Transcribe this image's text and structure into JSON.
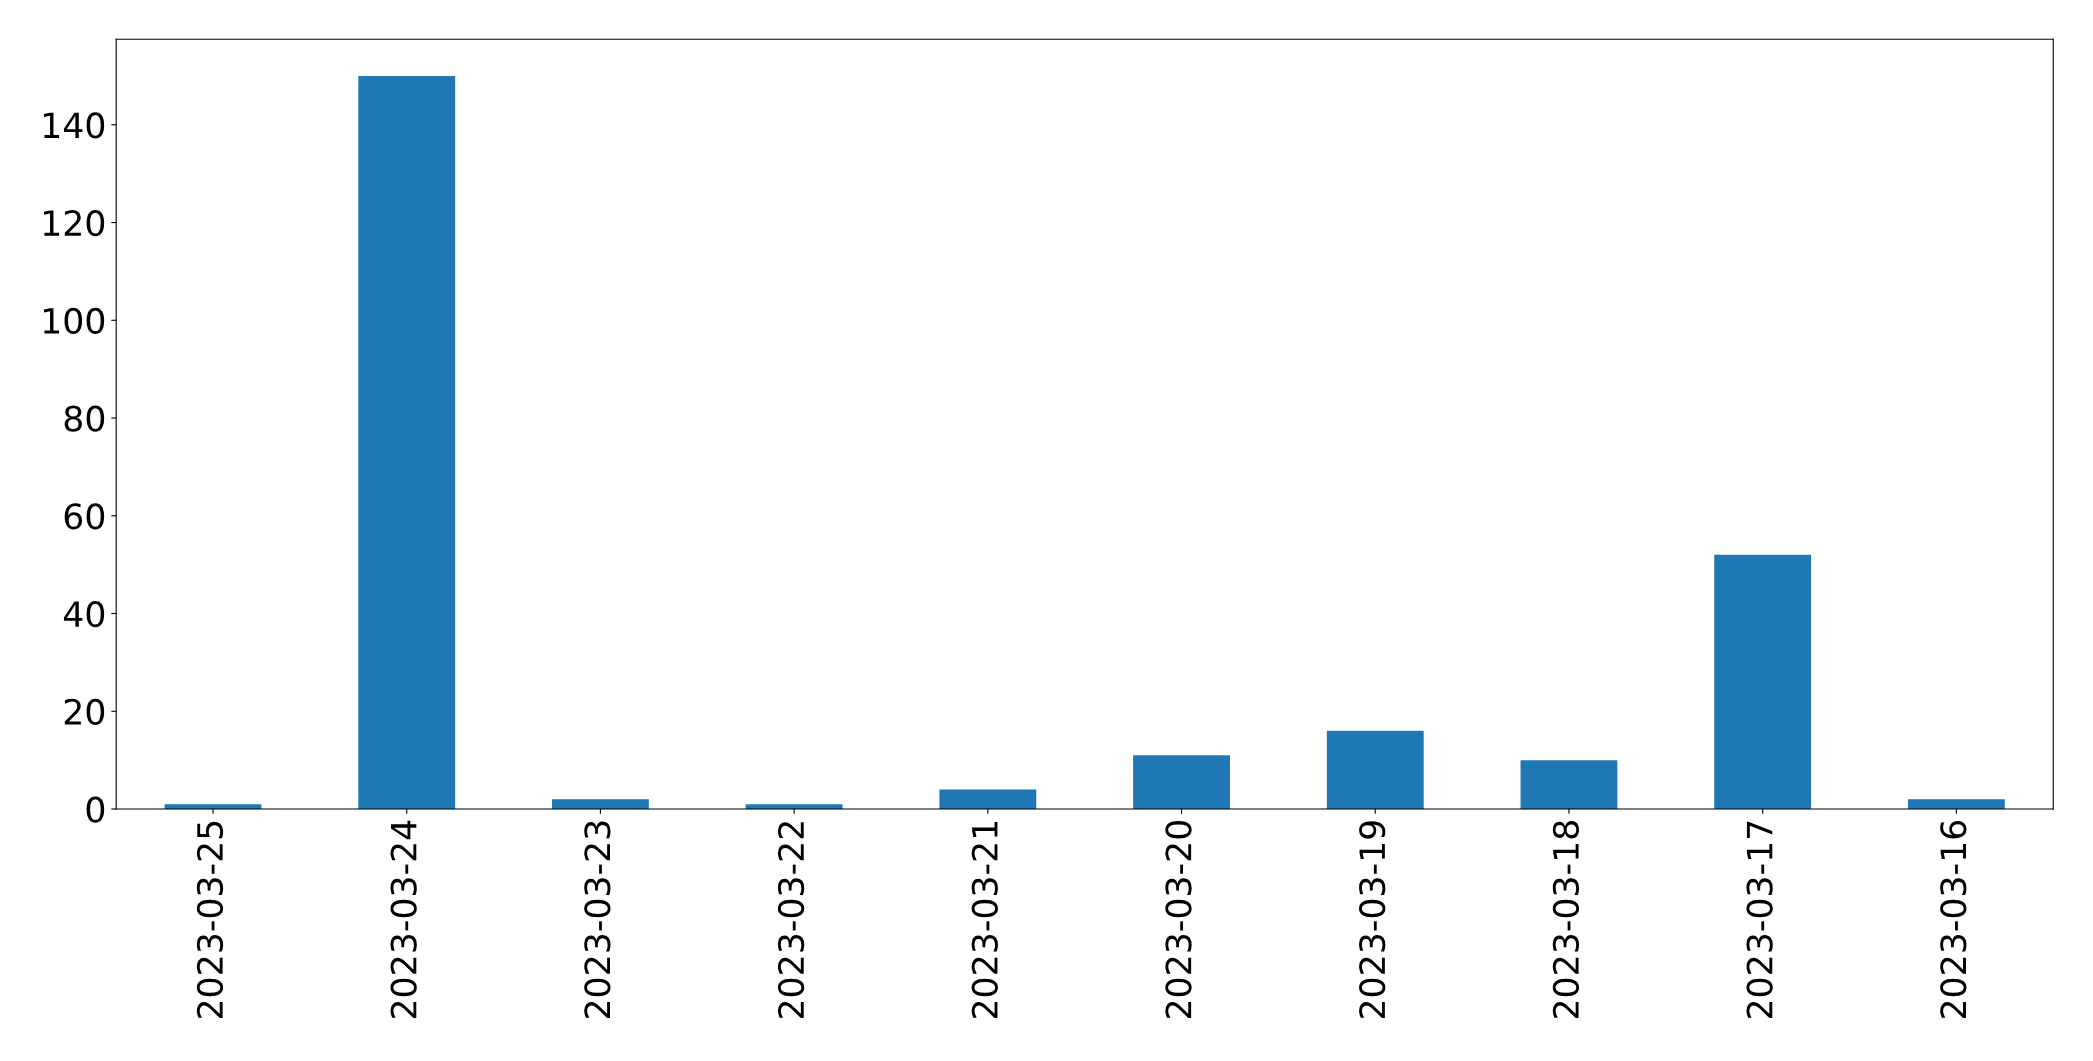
{
  "chart_data": {
    "type": "bar",
    "categories": [
      "2023-03-25",
      "2023-03-24",
      "2023-03-23",
      "2023-03-22",
      "2023-03-21",
      "2023-03-20",
      "2023-03-19",
      "2023-03-18",
      "2023-03-17",
      "2023-03-16"
    ],
    "values": [
      1,
      150,
      2,
      1,
      4,
      11,
      16,
      10,
      52,
      2
    ],
    "color": "#1f77b4",
    "ylim": [
      0,
      157.5
    ],
    "yticks": [
      0,
      20,
      40,
      60,
      80,
      100,
      120,
      140
    ],
    "grid": false
  }
}
